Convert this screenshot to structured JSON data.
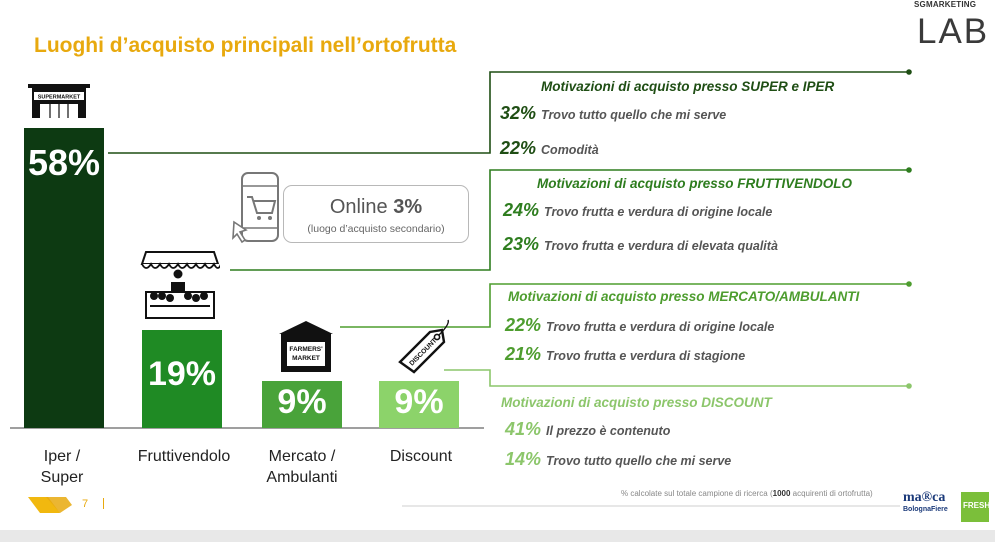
{
  "title": "Luoghi d’acquisto principali nell’ortofrutta",
  "logo": {
    "top": "SGMARKETING",
    "main": "LAB"
  },
  "chart_data": {
    "type": "bar",
    "categories": [
      "Iper / Super",
      "Fruttivendolo",
      "Mercato / Ambulanti",
      "Discount"
    ],
    "values": [
      58,
      19,
      9,
      9
    ],
    "value_labels": [
      "58%",
      "19%",
      "9%",
      "9%"
    ],
    "colors": [
      "#0d3a12",
      "#1f8a24",
      "#49a33a",
      "#8cd36a"
    ],
    "title": "Luoghi d’acquisto principali nell’ortofrutta"
  },
  "categories": {
    "iper_1": "Iper /",
    "iper_2": "Super",
    "frutti": "Fruttivendolo",
    "mercato_1": "Mercato /",
    "mercato_2": "Ambulanti",
    "discount": "Discount"
  },
  "icons": {
    "supermarket_sign": "SUPERMARKET",
    "farmers_1": "FARMERS'",
    "farmers_2": "MARKET",
    "discount_tag": "DISCOUNT"
  },
  "online": {
    "label": "Online",
    "value": "3%",
    "note": "(luogo d’acquisto secondario)"
  },
  "motivations": [
    {
      "title": "Motivazioni di acquisto presso SUPER e IPER",
      "rows": [
        {
          "pct": "32%",
          "text": "Trovo tutto quello che mi serve"
        },
        {
          "pct": "22%",
          "text": "Comodità"
        }
      ]
    },
    {
      "title": "Motivazioni di acquisto presso FRUTTIVENDOLO",
      "rows": [
        {
          "pct": "24%",
          "text": "Trovo frutta e verdura di origine locale"
        },
        {
          "pct": "23%",
          "text": "Trovo frutta e verdura di elevata qualità"
        }
      ]
    },
    {
      "title": "Motivazioni di acquisto presso MERCATO/AMBULANTI",
      "rows": [
        {
          "pct": "22%",
          "text": "Trovo frutta e verdura di origine locale"
        },
        {
          "pct": "21%",
          "text": "Trovo frutta e verdura di stagione"
        }
      ]
    },
    {
      "title": "Motivazioni di acquisto presso DISCOUNT",
      "rows": [
        {
          "pct": "41%",
          "text": "Il prezzo è contenuto"
        },
        {
          "pct": "14%",
          "text": "Trovo tutto quello che mi serve"
        }
      ]
    }
  ],
  "footnote": {
    "pre": "% calcolate sul totale campione di ricerca (",
    "bold": "1000",
    "post": " acquirenti di ortofrutta)"
  },
  "page_number": "7",
  "brand": {
    "marca": "ma®ca",
    "bf": "BolognaFiere",
    "fresh": "FRESH"
  }
}
